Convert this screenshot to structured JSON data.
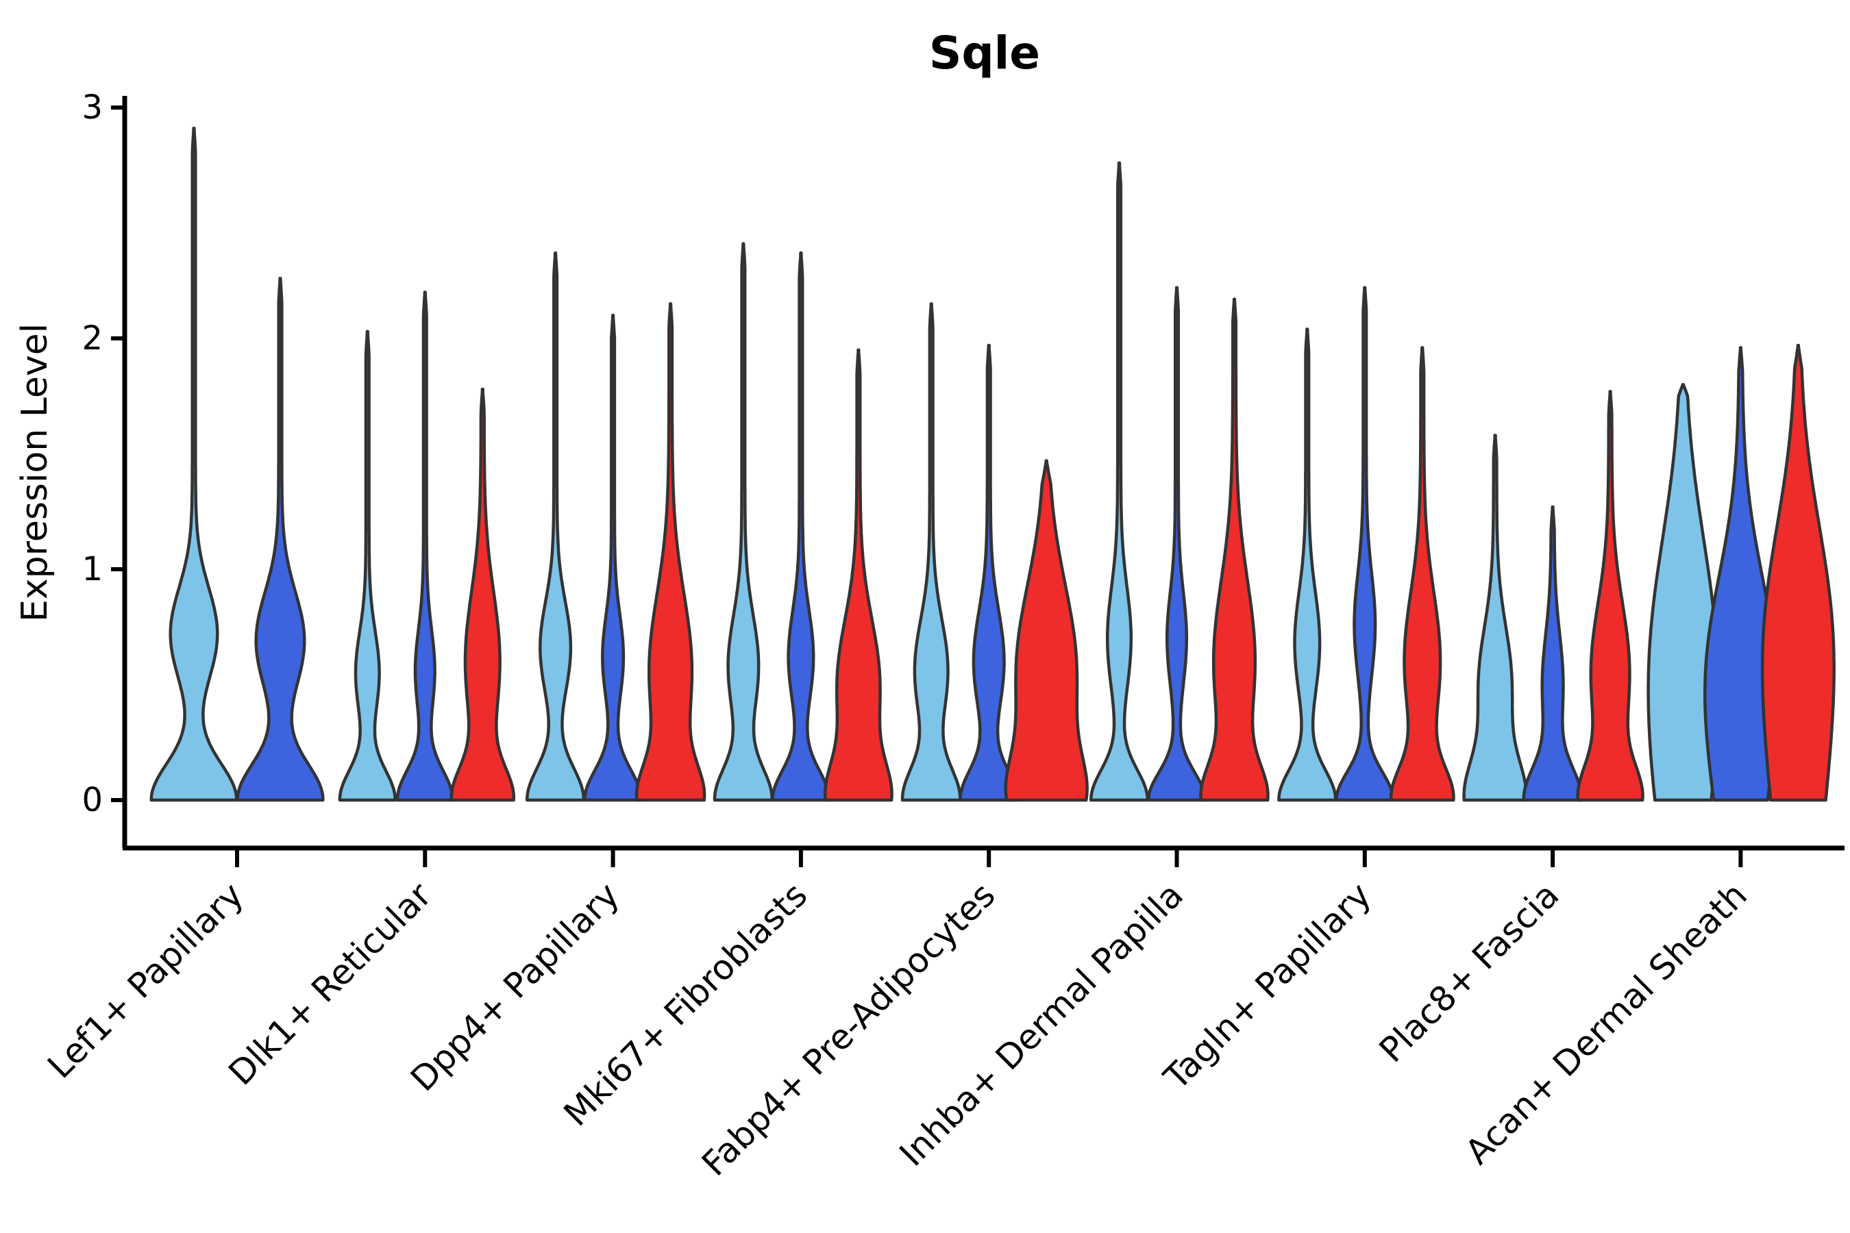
{
  "chart_data": {
    "type": "violin",
    "title": "Sqle",
    "ylabel": "Expression Level",
    "xlabel": "",
    "ylim": [
      0,
      3
    ],
    "yticks": [
      0,
      1,
      2,
      3
    ],
    "grid": false,
    "legend_position": "none",
    "categories": [
      "Lef1+ Papillary",
      "Dlk1+ Reticular",
      "Dpp4+ Papillary",
      "Mki67+ Fibroblasts",
      "Fabp4+ Pre-Adipocytes",
      "Inhba+ Dermal Papilla",
      "Tagln+ Papillary",
      "Plac8+ Fascia",
      "Acan+ Dermal Sheath"
    ],
    "series": [
      {
        "name": "skyblue-split",
        "color": "#7EC4E8",
        "max_values": [
          2.91,
          2.03,
          2.37,
          2.41,
          2.15,
          2.76,
          2.04,
          1.58,
          1.8
        ]
      },
      {
        "name": "royalblue-split",
        "color": "#3D63DE",
        "max_values": [
          2.26,
          2.2,
          2.1,
          2.37,
          1.97,
          2.22,
          2.22,
          1.27,
          1.96
        ]
      },
      {
        "name": "red-split",
        "color": "#EE2C2C",
        "max_values": [
          null,
          1.78,
          2.15,
          1.95,
          1.47,
          2.17,
          1.96,
          1.77,
          1.97
        ]
      }
    ],
    "outline_color": "#333333",
    "axis_color": "#000000"
  },
  "violin_shapes": [
    {
      "category": "Lef1+ Papillary",
      "violins": [
        {
          "c": 0,
          "peak": 2.91,
          "base": 60,
          "s1": 0.16,
          "bulge": 32,
          "bc": 0.72,
          "bs": 0.2
        },
        {
          "c": 1,
          "peak": 2.26,
          "base": 60,
          "s1": 0.16,
          "bulge": 33,
          "bc": 0.69,
          "bs": 0.21
        }
      ]
    },
    {
      "category": "Dlk1+ Reticular",
      "violins": [
        {
          "c": 0,
          "peak": 2.03,
          "base": 38,
          "s1": 0.13,
          "bulge": 15,
          "bc": 0.55,
          "bs": 0.18
        },
        {
          "c": 1,
          "peak": 2.2,
          "base": 38,
          "s1": 0.13,
          "bulge": 12,
          "bc": 0.56,
          "bs": 0.18
        },
        {
          "c": 2,
          "peak": 1.78,
          "base": 40,
          "s1": 0.14,
          "bulge": 23,
          "bc": 0.6,
          "bs": 0.3
        }
      ]
    },
    {
      "category": "Dpp4+ Papillary",
      "violins": [
        {
          "c": 0,
          "peak": 2.37,
          "base": 39,
          "s1": 0.14,
          "bulge": 20,
          "bc": 0.66,
          "bs": 0.2
        },
        {
          "c": 1,
          "peak": 2.1,
          "base": 39,
          "s1": 0.13,
          "bulge": 13,
          "bc": 0.62,
          "bs": 0.18
        },
        {
          "c": 2,
          "peak": 2.15,
          "base": 40,
          "s1": 0.15,
          "bulge": 29,
          "bc": 0.56,
          "bs": 0.33
        }
      ]
    },
    {
      "category": "Mki67+ Fibroblasts",
      "violins": [
        {
          "c": 0,
          "peak": 2.41,
          "base": 39,
          "s1": 0.14,
          "bulge": 20,
          "bc": 0.58,
          "bs": 0.22
        },
        {
          "c": 1,
          "peak": 2.37,
          "base": 39,
          "s1": 0.13,
          "bulge": 16,
          "bc": 0.62,
          "bs": 0.2
        },
        {
          "c": 2,
          "peak": 1.95,
          "base": 40,
          "s1": 0.16,
          "bulge": 29,
          "bc": 0.5,
          "bs": 0.28
        }
      ]
    },
    {
      "category": "Fabp4+ Pre-Adipocytes",
      "violins": [
        {
          "c": 0,
          "peak": 2.15,
          "base": 39,
          "s1": 0.14,
          "bulge": 22,
          "bc": 0.56,
          "bs": 0.22
        },
        {
          "c": 1,
          "peak": 1.97,
          "base": 39,
          "s1": 0.13,
          "bulge": 20,
          "bc": 0.6,
          "bs": 0.22
        },
        {
          "c": 2,
          "peak": 1.47,
          "base": 41,
          "s1": 0.18,
          "bulge": 42,
          "bc": 0.55,
          "bs": 0.38
        }
      ]
    },
    {
      "category": "Inhba+ Dermal Papilla",
      "violins": [
        {
          "c": 0,
          "peak": 2.76,
          "base": 39,
          "s1": 0.13,
          "bulge": 15,
          "bc": 0.7,
          "bs": 0.22
        },
        {
          "c": 1,
          "peak": 2.22,
          "base": 39,
          "s1": 0.12,
          "bulge": 12,
          "bc": 0.7,
          "bs": 0.2
        },
        {
          "c": 2,
          "peak": 2.17,
          "base": 40,
          "s1": 0.15,
          "bulge": 28,
          "bc": 0.6,
          "bs": 0.35
        }
      ]
    },
    {
      "category": "Tagln+ Papillary",
      "violins": [
        {
          "c": 0,
          "peak": 2.04,
          "base": 39,
          "s1": 0.13,
          "bulge": 16,
          "bc": 0.68,
          "bs": 0.22
        },
        {
          "c": 1,
          "peak": 2.22,
          "base": 39,
          "s1": 0.12,
          "bulge": 13,
          "bc": 0.76,
          "bs": 0.22
        },
        {
          "c": 2,
          "peak": 1.96,
          "base": 40,
          "s1": 0.14,
          "bulge": 24,
          "bc": 0.6,
          "bs": 0.3
        }
      ]
    },
    {
      "category": "Plac8+ Fascia",
      "violins": [
        {
          "c": 0,
          "peak": 1.58,
          "base": 40,
          "s1": 0.17,
          "bulge": 22,
          "bc": 0.5,
          "bs": 0.25
        },
        {
          "c": 1,
          "peak": 1.27,
          "base": 39,
          "s1": 0.14,
          "bulge": 13,
          "bc": 0.5,
          "bs": 0.22
        },
        {
          "c": 2,
          "peak": 1.77,
          "base": 40,
          "s1": 0.15,
          "bulge": 26,
          "bc": 0.55,
          "bs": 0.3
        }
      ]
    },
    {
      "category": "Acan+ Dermal Sheath",
      "violins": [
        {
          "c": 0,
          "peak": 1.8,
          "base": 26,
          "s1": 0.5,
          "bulge": 36,
          "bc": 0.72,
          "bs": 0.5,
          "blade": 1,
          "blunt": 1
        },
        {
          "c": 1,
          "peak": 1.96,
          "base": 25,
          "s1": 0.5,
          "bulge": 36,
          "bc": 0.62,
          "bs": 0.42,
          "blade": 1
        },
        {
          "c": 2,
          "peak": 1.97,
          "base": 28,
          "s1": 0.55,
          "bulge": 37,
          "bc": 0.78,
          "bs": 0.48,
          "blade": 1
        }
      ]
    }
  ]
}
